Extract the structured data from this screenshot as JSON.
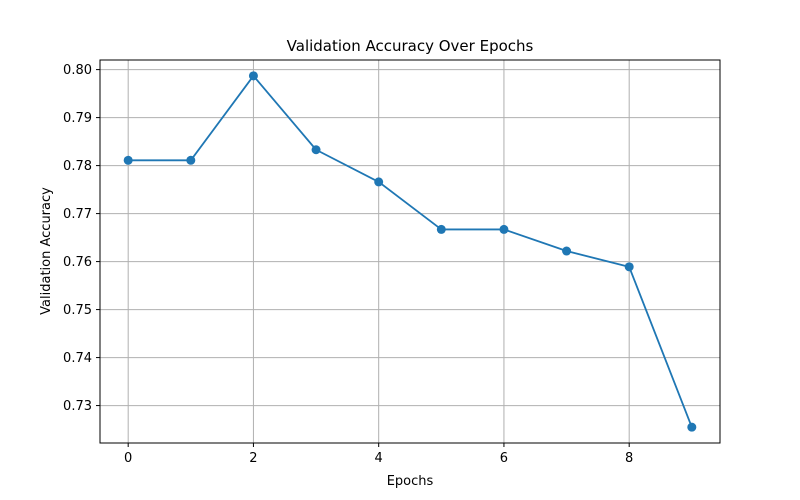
{
  "chart_data": {
    "type": "line",
    "title": "Validation Accuracy Over Epochs",
    "xlabel": "Epochs",
    "ylabel": "Validation Accuracy",
    "x": [
      0,
      1,
      2,
      3,
      4,
      5,
      6,
      7,
      8,
      9
    ],
    "series": [
      {
        "values": [
          0.7811,
          0.7811,
          0.7987,
          0.7833,
          0.7766,
          0.7667,
          0.7667,
          0.7622,
          0.7589,
          0.7255
        ],
        "color": "#1f77b4",
        "marker": "circle"
      }
    ],
    "xlim": [
      -0.45,
      9.45
    ],
    "ylim": [
      0.7222,
      0.802
    ],
    "xticks": [
      "0",
      "2",
      "4",
      "6",
      "8"
    ],
    "yticks": [
      "0.73",
      "0.74",
      "0.75",
      "0.76",
      "0.77",
      "0.78",
      "0.79",
      "0.80"
    ],
    "grid": true,
    "grid_color": "#b0b0b0",
    "legend": "none"
  }
}
